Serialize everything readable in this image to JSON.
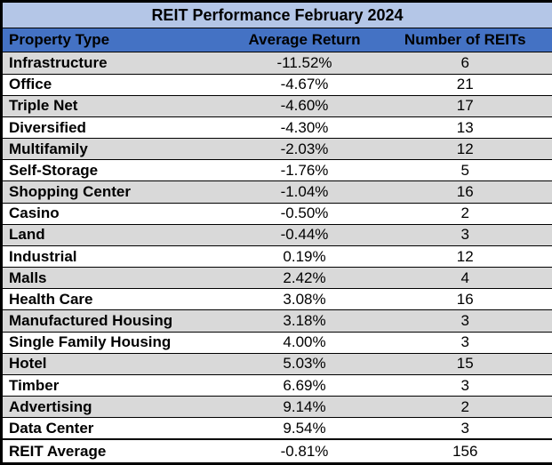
{
  "title": "REIT Performance February 2024",
  "columns": {
    "property": "Property Type",
    "avg_return": "Average Return",
    "count": "Number of REITs"
  },
  "rows": [
    {
      "type": "Infrastructure",
      "return": "-11.52%",
      "count": "6"
    },
    {
      "type": "Office",
      "return": "-4.67%",
      "count": "21"
    },
    {
      "type": "Triple Net",
      "return": "-4.60%",
      "count": "17"
    },
    {
      "type": "Diversified",
      "return": "-4.30%",
      "count": "13"
    },
    {
      "type": "Multifamily",
      "return": "-2.03%",
      "count": "12"
    },
    {
      "type": "Self-Storage",
      "return": "-1.76%",
      "count": "5"
    },
    {
      "type": "Shopping Center",
      "return": "-1.04%",
      "count": "16"
    },
    {
      "type": "Casino",
      "return": "-0.50%",
      "count": "2"
    },
    {
      "type": "Land",
      "return": "-0.44%",
      "count": "3"
    },
    {
      "type": "Industrial",
      "return": "0.19%",
      "count": "12"
    },
    {
      "type": "Malls",
      "return": "2.42%",
      "count": "4"
    },
    {
      "type": "Health Care",
      "return": "3.08%",
      "count": "16"
    },
    {
      "type": "Manufactured Housing",
      "return": "3.18%",
      "count": "3"
    },
    {
      "type": "Single Family Housing",
      "return": "4.00%",
      "count": "3"
    },
    {
      "type": "Hotel",
      "return": "5.03%",
      "count": "15"
    },
    {
      "type": "Timber",
      "return": "6.69%",
      "count": "3"
    },
    {
      "type": "Advertising",
      "return": "9.14%",
      "count": "2"
    },
    {
      "type": "Data Center",
      "return": "9.54%",
      "count": "3"
    }
  ],
  "footer": {
    "type": "REIT Average",
    "return": "-0.81%",
    "count": "156"
  },
  "colors": {
    "title_bg": "#B4C6E7",
    "header_bg": "#4472C4",
    "stripe_bg": "#D9D9D9",
    "row_bg": "#FFFFFF",
    "border": "#000000",
    "text": "#000000"
  },
  "chart_data": {
    "type": "table",
    "title": "REIT Performance February 2024",
    "columns": [
      "Property Type",
      "Average Return",
      "Number of REITs"
    ],
    "rows": [
      [
        "Infrastructure",
        -11.52,
        6
      ],
      [
        "Office",
        -4.67,
        21
      ],
      [
        "Triple Net",
        -4.6,
        17
      ],
      [
        "Diversified",
        -4.3,
        13
      ],
      [
        "Multifamily",
        -2.03,
        12
      ],
      [
        "Self-Storage",
        -1.76,
        5
      ],
      [
        "Shopping Center",
        -1.04,
        16
      ],
      [
        "Casino",
        -0.5,
        2
      ],
      [
        "Land",
        -0.44,
        3
      ],
      [
        "Industrial",
        0.19,
        12
      ],
      [
        "Malls",
        2.42,
        4
      ],
      [
        "Health Care",
        3.08,
        16
      ],
      [
        "Manufactured Housing",
        3.18,
        3
      ],
      [
        "Single Family Housing",
        4.0,
        3
      ],
      [
        "Hotel",
        5.03,
        15
      ],
      [
        "Timber",
        6.69,
        3
      ],
      [
        "Advertising",
        9.14,
        2
      ],
      [
        "Data Center",
        9.54,
        3
      ]
    ],
    "footer": [
      "REIT Average",
      -0.81,
      156
    ],
    "units": {
      "Average Return": "percent",
      "Number of REITs": "count"
    },
    "sort": "Average Return ascending"
  }
}
